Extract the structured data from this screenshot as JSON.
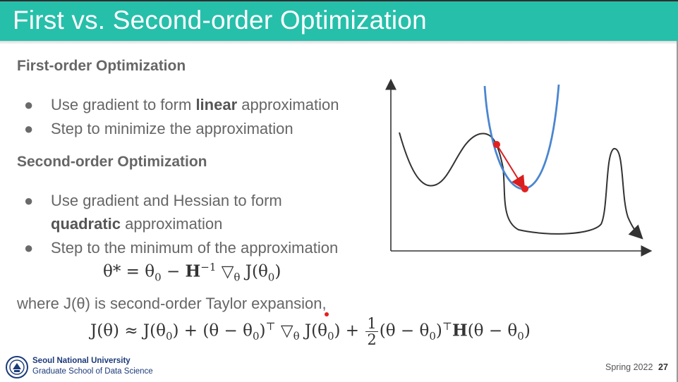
{
  "title": "First vs. Second-order Optimization",
  "sections": [
    {
      "heading": "First-order Optimization",
      "items": [
        {
          "pre": "Use gradient to form ",
          "bold": "linear",
          "post": " approximation"
        },
        {
          "pre": "Step to minimize the approximation",
          "bold": "",
          "post": ""
        }
      ]
    },
    {
      "heading": "Second-order Optimization",
      "items": [
        {
          "pre": "Use gradient and Hessian to form",
          "bold": "",
          "post": ""
        },
        {
          "pre": "",
          "bold": "quadratic",
          "post": " approximation"
        },
        {
          "pre": "Step to the minimum of the approximation",
          "bold": "",
          "post": ""
        }
      ]
    }
  ],
  "bullet_glyph": "●",
  "equations": {
    "update_lhs": "θ* = θ",
    "update_mid": "0",
    "update_minus": " − ",
    "update_H": "H",
    "update_inv": "−1",
    "update_rest": " ▽",
    "update_theta_sub": "θ",
    "update_J": " J(θ",
    "update_J_sub": "0",
    "update_close": ")",
    "where_text": "where J(θ) is second-order Taylor expansion,",
    "taylor_a": "J(θ) ≈ J(θ",
    "taylor_a_sub": "0",
    "taylor_b": ") + (θ − θ",
    "taylor_b_sub": "0",
    "taylor_c": ")",
    "taylor_top": "⊤",
    "taylor_d": " ▽",
    "taylor_d_sub": "θ",
    "taylor_e": " J(θ",
    "taylor_e_sub": "0",
    "taylor_f": ") + ",
    "frac_num": "1",
    "frac_den": "2",
    "taylor_g": "(θ − θ",
    "taylor_g_sub": "0",
    "taylor_h": ")",
    "taylor_top2": "⊤",
    "taylor_H": "H",
    "taylor_i": "(θ − θ",
    "taylor_i_sub": "0",
    "taylor_j": ")"
  },
  "footer": {
    "university": "Seoul National University",
    "school": "Graduate School of Data Science",
    "term": "Spring 2022",
    "page": "27"
  },
  "colors": {
    "title_bar": "#26bfaa",
    "function_curve": "#333333",
    "quadratic_curve": "#4a86d0",
    "step_arrow": "#d81e1e"
  },
  "icons": [
    "university-seal-icon"
  ]
}
